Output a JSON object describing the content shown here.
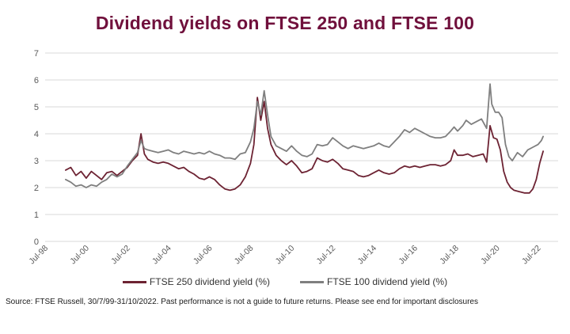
{
  "title": {
    "text": "Dividend yields on FTSE 250 and FTSE 100",
    "color": "#70103C"
  },
  "source_note": "Source: FTSE Russell, 30/7/99-31/10/2022. Past performance is not a guide to future returns. Please see end for important disclosures",
  "colors": {
    "ftse250_line": "#6D2333",
    "ftse100_line": "#7F7F7F",
    "axis_label": "#595959",
    "gridline": "#D9D9D9"
  },
  "chart_data": {
    "type": "line",
    "title": "Dividend yields on FTSE 250 and FTSE 100",
    "xlabel": "",
    "ylabel": "",
    "ylim": [
      0,
      7
    ],
    "y_ticks": [
      0,
      1,
      2,
      3,
      4,
      5,
      6,
      7
    ],
    "grid": "horizontal",
    "legend_position": "bottom",
    "x_unit": "months since Jul-1998",
    "x_ticks": [
      {
        "m": 0,
        "label": "Jul-98"
      },
      {
        "m": 24,
        "label": "Jul-00"
      },
      {
        "m": 48,
        "label": "Jul-02"
      },
      {
        "m": 72,
        "label": "Jul-04"
      },
      {
        "m": 96,
        "label": "Jul-06"
      },
      {
        "m": 120,
        "label": "Jul-08"
      },
      {
        "m": 144,
        "label": "Jul-10"
      },
      {
        "m": 168,
        "label": "Jul-12"
      },
      {
        "m": 192,
        "label": "Jul-14"
      },
      {
        "m": 216,
        "label": "Jul-16"
      },
      {
        "m": 240,
        "label": "Jul-18"
      },
      {
        "m": 264,
        "label": "Jul-20"
      },
      {
        "m": 288,
        "label": "Jul-22"
      }
    ],
    "series": [
      {
        "name": "FTSE 250 dividend yield (%)",
        "color": "#6D2333",
        "points": [
          [
            12,
            2.65
          ],
          [
            15,
            2.75
          ],
          [
            18,
            2.45
          ],
          [
            21,
            2.6
          ],
          [
            24,
            2.35
          ],
          [
            27,
            2.6
          ],
          [
            30,
            2.45
          ],
          [
            33,
            2.3
          ],
          [
            36,
            2.55
          ],
          [
            39,
            2.6
          ],
          [
            42,
            2.45
          ],
          [
            45,
            2.6
          ],
          [
            48,
            2.75
          ],
          [
            51,
            3.0
          ],
          [
            54,
            3.2
          ],
          [
            56,
            4.0
          ],
          [
            58,
            3.25
          ],
          [
            60,
            3.05
          ],
          [
            63,
            2.95
          ],
          [
            66,
            2.9
          ],
          [
            69,
            2.95
          ],
          [
            72,
            2.9
          ],
          [
            75,
            2.8
          ],
          [
            78,
            2.7
          ],
          [
            81,
            2.75
          ],
          [
            84,
            2.6
          ],
          [
            87,
            2.5
          ],
          [
            90,
            2.35
          ],
          [
            93,
            2.3
          ],
          [
            96,
            2.4
          ],
          [
            99,
            2.3
          ],
          [
            102,
            2.1
          ],
          [
            105,
            1.95
          ],
          [
            108,
            1.9
          ],
          [
            111,
            1.95
          ],
          [
            114,
            2.1
          ],
          [
            117,
            2.4
          ],
          [
            120,
            2.9
          ],
          [
            122,
            3.6
          ],
          [
            124,
            5.35
          ],
          [
            126,
            4.5
          ],
          [
            128,
            5.2
          ],
          [
            130,
            4.2
          ],
          [
            132,
            3.6
          ],
          [
            135,
            3.2
          ],
          [
            138,
            3.0
          ],
          [
            141,
            2.85
          ],
          [
            144,
            3.0
          ],
          [
            147,
            2.8
          ],
          [
            150,
            2.55
          ],
          [
            153,
            2.6
          ],
          [
            156,
            2.7
          ],
          [
            159,
            3.1
          ],
          [
            162,
            3.0
          ],
          [
            165,
            2.95
          ],
          [
            168,
            3.05
          ],
          [
            171,
            2.9
          ],
          [
            174,
            2.7
          ],
          [
            177,
            2.65
          ],
          [
            180,
            2.6
          ],
          [
            183,
            2.45
          ],
          [
            186,
            2.4
          ],
          [
            189,
            2.45
          ],
          [
            192,
            2.55
          ],
          [
            195,
            2.65
          ],
          [
            198,
            2.55
          ],
          [
            201,
            2.5
          ],
          [
            204,
            2.55
          ],
          [
            207,
            2.7
          ],
          [
            210,
            2.8
          ],
          [
            213,
            2.75
          ],
          [
            216,
            2.8
          ],
          [
            219,
            2.75
          ],
          [
            222,
            2.8
          ],
          [
            225,
            2.85
          ],
          [
            228,
            2.85
          ],
          [
            231,
            2.8
          ],
          [
            234,
            2.85
          ],
          [
            237,
            3.0
          ],
          [
            239,
            3.4
          ],
          [
            241,
            3.2
          ],
          [
            244,
            3.2
          ],
          [
            247,
            3.25
          ],
          [
            250,
            3.15
          ],
          [
            253,
            3.2
          ],
          [
            256,
            3.25
          ],
          [
            258,
            2.95
          ],
          [
            260,
            4.3
          ],
          [
            262,
            3.85
          ],
          [
            264,
            3.8
          ],
          [
            266,
            3.4
          ],
          [
            268,
            2.6
          ],
          [
            270,
            2.2
          ],
          [
            272,
            2.0
          ],
          [
            274,
            1.9
          ],
          [
            277,
            1.85
          ],
          [
            280,
            1.8
          ],
          [
            283,
            1.8
          ],
          [
            285,
            1.95
          ],
          [
            287,
            2.3
          ],
          [
            289,
            2.9
          ],
          [
            291,
            3.35
          ]
        ]
      },
      {
        "name": "FTSE 100 dividend yield (%)",
        "color": "#7F7F7F",
        "points": [
          [
            12,
            2.3
          ],
          [
            15,
            2.2
          ],
          [
            18,
            2.05
          ],
          [
            21,
            2.1
          ],
          [
            24,
            2.0
          ],
          [
            27,
            2.1
          ],
          [
            30,
            2.05
          ],
          [
            33,
            2.2
          ],
          [
            36,
            2.3
          ],
          [
            39,
            2.5
          ],
          [
            42,
            2.4
          ],
          [
            45,
            2.5
          ],
          [
            48,
            2.8
          ],
          [
            51,
            3.05
          ],
          [
            54,
            3.3
          ],
          [
            56,
            3.75
          ],
          [
            58,
            3.45
          ],
          [
            60,
            3.4
          ],
          [
            63,
            3.35
          ],
          [
            66,
            3.3
          ],
          [
            69,
            3.35
          ],
          [
            72,
            3.4
          ],
          [
            75,
            3.3
          ],
          [
            78,
            3.25
          ],
          [
            81,
            3.35
          ],
          [
            84,
            3.3
          ],
          [
            87,
            3.25
          ],
          [
            90,
            3.3
          ],
          [
            93,
            3.25
          ],
          [
            96,
            3.35
          ],
          [
            99,
            3.25
          ],
          [
            102,
            3.2
          ],
          [
            105,
            3.1
          ],
          [
            108,
            3.1
          ],
          [
            111,
            3.05
          ],
          [
            114,
            3.25
          ],
          [
            117,
            3.3
          ],
          [
            120,
            3.7
          ],
          [
            122,
            4.2
          ],
          [
            124,
            5.2
          ],
          [
            126,
            4.7
          ],
          [
            128,
            5.6
          ],
          [
            130,
            4.7
          ],
          [
            132,
            3.9
          ],
          [
            135,
            3.55
          ],
          [
            138,
            3.45
          ],
          [
            141,
            3.35
          ],
          [
            144,
            3.55
          ],
          [
            147,
            3.35
          ],
          [
            150,
            3.2
          ],
          [
            153,
            3.15
          ],
          [
            156,
            3.25
          ],
          [
            159,
            3.6
          ],
          [
            162,
            3.55
          ],
          [
            165,
            3.6
          ],
          [
            168,
            3.85
          ],
          [
            171,
            3.7
          ],
          [
            174,
            3.55
          ],
          [
            177,
            3.45
          ],
          [
            180,
            3.55
          ],
          [
            183,
            3.5
          ],
          [
            186,
            3.45
          ],
          [
            189,
            3.5
          ],
          [
            192,
            3.55
          ],
          [
            195,
            3.65
          ],
          [
            198,
            3.55
          ],
          [
            201,
            3.5
          ],
          [
            204,
            3.7
          ],
          [
            207,
            3.9
          ],
          [
            210,
            4.15
          ],
          [
            213,
            4.05
          ],
          [
            216,
            4.2
          ],
          [
            219,
            4.1
          ],
          [
            222,
            4.0
          ],
          [
            225,
            3.9
          ],
          [
            228,
            3.85
          ],
          [
            231,
            3.85
          ],
          [
            234,
            3.9
          ],
          [
            237,
            4.1
          ],
          [
            239,
            4.25
          ],
          [
            241,
            4.1
          ],
          [
            244,
            4.3
          ],
          [
            246,
            4.5
          ],
          [
            249,
            4.35
          ],
          [
            252,
            4.45
          ],
          [
            255,
            4.55
          ],
          [
            258,
            4.2
          ],
          [
            260,
            5.85
          ],
          [
            261,
            5.1
          ],
          [
            263,
            4.8
          ],
          [
            265,
            4.8
          ],
          [
            267,
            4.6
          ],
          [
            269,
            3.6
          ],
          [
            271,
            3.15
          ],
          [
            273,
            3.0
          ],
          [
            276,
            3.3
          ],
          [
            279,
            3.15
          ],
          [
            282,
            3.4
          ],
          [
            285,
            3.5
          ],
          [
            288,
            3.6
          ],
          [
            290,
            3.75
          ],
          [
            291,
            3.9
          ]
        ]
      }
    ]
  }
}
